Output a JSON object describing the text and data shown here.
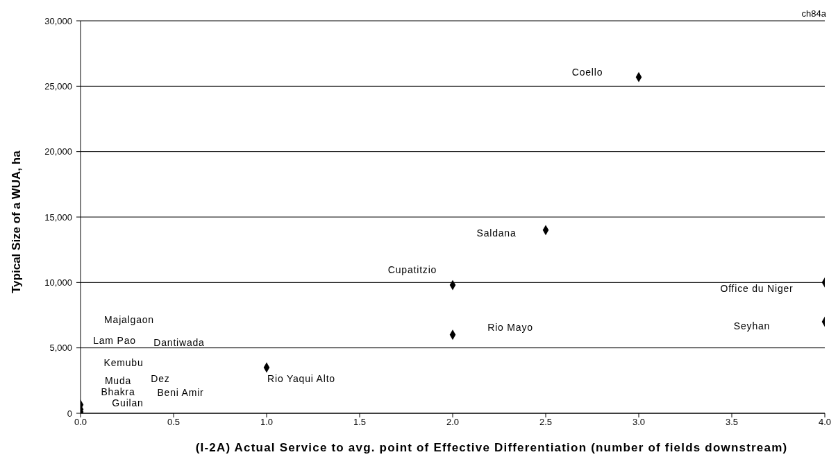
{
  "chart_data": {
    "type": "scatter",
    "xlabel": "(I-2A)  Actual Service to avg. point of Effective Differentiation (number of fields downstream)",
    "ylabel": "Typical Size of a WUA, ha",
    "series": [
      {
        "color": "#000000",
        "x": [
          3,
          2.5,
          2,
          4,
          2,
          4,
          1,
          0,
          0,
          0
        ],
        "values": [
          25700,
          14000,
          9800,
          10000,
          6000,
          7000,
          3500,
          650,
          300,
          100
        ]
      }
    ],
    "xlim": [
      0,
      4
    ],
    "xticks": [
      {
        "value": 0,
        "label": "0.0"
      },
      {
        "value": 0.5,
        "label": "0.5"
      },
      {
        "value": 1,
        "label": "1.0"
      },
      {
        "value": 1.5,
        "label": "1.5"
      },
      {
        "value": 2,
        "label": "2.0"
      },
      {
        "value": 2.5,
        "label": "2.5"
      },
      {
        "value": 3,
        "label": "3.0"
      },
      {
        "value": 3.5,
        "label": "3.5"
      },
      {
        "value": 4,
        "label": "4.0"
      }
    ],
    "ylim": [
      0,
      30000
    ],
    "yticks": [
      0,
      {
        "value": 5000,
        "label": "5,000"
      },
      {
        "value": 10000,
        "label": "10,000"
      },
      {
        "value": 15000,
        "label": "15,000"
      },
      {
        "value": 20000,
        "label": "20,000"
      },
      {
        "value": 25000,
        "label": "25,000"
      },
      {
        "value": 30000,
        "label": "30,000"
      }
    ],
    "grid": "y",
    "marker": "diamond",
    "legend": false,
    "annotations": [
      "ch84a",
      "Coello",
      "Saldana",
      "Cupatitzio",
      "Office du Niger",
      "Rio Mayo",
      "Seyhan",
      "Rio Yaqui Alto",
      "Majalgaon",
      "Lam Pao",
      "Dantiwada",
      "Kemubu",
      "Muda",
      "Dez",
      "Bhakra",
      "Beni Amir",
      "Guilan"
    ]
  }
}
